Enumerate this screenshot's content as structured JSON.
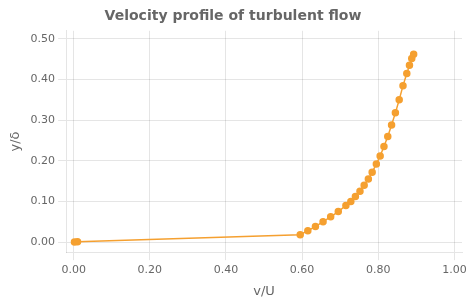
{
  "chart_data": {
    "type": "line",
    "title": "Velocity profile of turbulent flow",
    "x_label": "v/U",
    "y_label": "y/δ",
    "x": [
      0.002,
      0.01,
      0.595,
      0.615,
      0.635,
      0.655,
      0.675,
      0.695,
      0.715,
      0.728,
      0.74,
      0.752,
      0.763,
      0.774,
      0.784,
      0.795,
      0.805,
      0.815,
      0.825,
      0.835,
      0.845,
      0.855,
      0.865,
      0.875,
      0.882,
      0.888,
      0.893
    ],
    "values": [
      0.0,
      0.001,
      0.018,
      0.028,
      0.038,
      0.05,
      0.062,
      0.075,
      0.09,
      0.1,
      0.112,
      0.125,
      0.14,
      0.155,
      0.172,
      0.192,
      0.212,
      0.235,
      0.26,
      0.288,
      0.318,
      0.35,
      0.385,
      0.415,
      0.435,
      0.452,
      0.462
    ],
    "color": "#f5a030",
    "marker": "circle",
    "xlim": [
      -0.02,
      1.02
    ],
    "ylim": [
      -0.025,
      0.52
    ],
    "xticks": [
      {
        "value": 0.0,
        "label": "0.00"
      },
      {
        "value": 0.2,
        "label": "0.20"
      },
      {
        "value": 0.4,
        "label": "0.40"
      },
      {
        "value": 0.6,
        "label": "0.60"
      },
      {
        "value": 0.8,
        "label": "0.80"
      },
      {
        "value": 1.0,
        "label": "1.00"
      }
    ],
    "yticks": [
      {
        "value": 0.0,
        "label": "0.00"
      },
      {
        "value": 0.1,
        "label": "0.10"
      },
      {
        "value": 0.2,
        "label": "0.20"
      },
      {
        "value": 0.3,
        "label": "0.30"
      },
      {
        "value": 0.4,
        "label": "0.40"
      },
      {
        "value": 0.5,
        "label": "0.50"
      }
    ],
    "grid": true
  }
}
